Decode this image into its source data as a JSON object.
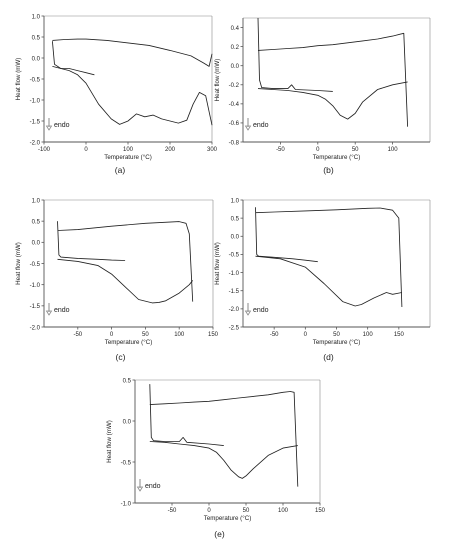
{
  "figure": {
    "colors": {
      "line": "#222222",
      "axis": "#555555",
      "frame": "#888888",
      "tick_label": "#222222"
    },
    "endo_label": "endo",
    "endo_icon": "down-arrow-icon"
  },
  "chart_data": [
    {
      "type": "line",
      "panel_label": "(a)",
      "xlabel": "Temperature (°C)",
      "ylabel": "Heat flow (mW)",
      "xlim": [
        -100,
        300
      ],
      "ylim": [
        -2.0,
        1.0
      ],
      "xticks": [
        -100,
        0,
        100,
        200,
        300
      ],
      "yticks": [
        -2.0,
        -1.5,
        -1.0,
        -0.5,
        0.0,
        0.5,
        1.0
      ],
      "ytick_labels": [
        "-2.0",
        "-1.5",
        "-1.0",
        "-0.5",
        "0.0",
        "0.5",
        "1.0"
      ],
      "grid": false,
      "series": [
        {
          "x": [
            -80,
            -75,
            -60,
            -40,
            -20,
            0,
            20
          ],
          "y": [
            0.4,
            -0.15,
            -0.25,
            -0.25,
            -0.3,
            -0.35,
            -0.4
          ]
        },
        {
          "x": [
            -80,
            -50,
            -20,
            0,
            50,
            100,
            150,
            200,
            250,
            280,
            293,
            300
          ],
          "y": [
            0.42,
            0.44,
            0.45,
            0.45,
            0.42,
            0.36,
            0.3,
            0.18,
            0.05,
            -0.12,
            -0.2,
            0.1
          ]
        },
        {
          "x": [
            -80,
            -60,
            -40,
            -20,
            0,
            30,
            60,
            80,
            100,
            120,
            140,
            160,
            180,
            200,
            220,
            240,
            255,
            270,
            285,
            300
          ],
          "y": [
            -0.2,
            -0.25,
            -0.3,
            -0.4,
            -0.6,
            -1.1,
            -1.45,
            -1.58,
            -1.5,
            -1.33,
            -1.4,
            -1.36,
            -1.45,
            -1.5,
            -1.55,
            -1.48,
            -1.1,
            -0.82,
            -0.9,
            -1.6
          ]
        }
      ]
    },
    {
      "type": "line",
      "panel_label": "(b)",
      "xlabel": "Temperature (°C)",
      "ylabel": "Heat flow (mW)",
      "xlim": [
        -100,
        150
      ],
      "ylim": [
        -0.8,
        0.5
      ],
      "xticks": [
        -50,
        0,
        50,
        100
      ],
      "yticks": [
        -0.8,
        -0.6,
        -0.4,
        -0.2,
        0.0,
        0.2,
        0.4
      ],
      "ytick_labels": [
        "-0.8",
        "-0.6",
        "-0.4",
        "-0.2",
        "0.0",
        "0.2",
        "0.4"
      ],
      "grid": false,
      "series": [
        {
          "x": [
            -80,
            -78,
            -75,
            -60,
            -40,
            -35,
            -30,
            0,
            20
          ],
          "y": [
            0.5,
            -0.15,
            -0.23,
            -0.24,
            -0.24,
            -0.2,
            -0.25,
            -0.26,
            -0.27
          ]
        },
        {
          "x": [
            -80,
            -60,
            -40,
            -20,
            0,
            20,
            40,
            60,
            80,
            100,
            110,
            115,
            120
          ],
          "y": [
            0.16,
            0.17,
            0.18,
            0.19,
            0.21,
            0.22,
            0.24,
            0.26,
            0.28,
            0.31,
            0.33,
            0.34,
            -0.64
          ]
        },
        {
          "x": [
            -80,
            -60,
            -40,
            -20,
            0,
            10,
            20,
            30,
            40,
            50,
            60,
            80,
            100,
            120
          ],
          "y": [
            -0.24,
            -0.25,
            -0.26,
            -0.28,
            -0.31,
            -0.35,
            -0.42,
            -0.52,
            -0.56,
            -0.5,
            -0.38,
            -0.25,
            -0.2,
            -0.17
          ]
        }
      ]
    },
    {
      "type": "line",
      "panel_label": "(c)",
      "xlabel": "Temperature (°C)",
      "ylabel": "Heat flow (mW)",
      "xlim": [
        -100,
        150
      ],
      "ylim": [
        -2.0,
        1.0
      ],
      "xticks": [
        -50,
        0,
        50,
        100,
        150
      ],
      "yticks": [
        -2.0,
        -1.5,
        -1.0,
        -0.5,
        0.0,
        0.5,
        1.0
      ],
      "ytick_labels": [
        "-2.0",
        "-1.5",
        "-1.0",
        "-0.5",
        "0.0",
        "0.5",
        "1.0"
      ],
      "grid": false,
      "series": [
        {
          "x": [
            -80,
            -78,
            -75,
            -50,
            -20,
            0,
            20
          ],
          "y": [
            0.5,
            -0.3,
            -0.35,
            -0.38,
            -0.4,
            -0.42,
            -0.43
          ]
        },
        {
          "x": [
            -80,
            -50,
            0,
            50,
            100,
            110,
            115,
            120
          ],
          "y": [
            0.28,
            0.3,
            0.38,
            0.45,
            0.49,
            0.45,
            0.2,
            -1.4
          ]
        },
        {
          "x": [
            -80,
            -50,
            -20,
            0,
            20,
            40,
            60,
            70,
            80,
            100,
            115,
            120
          ],
          "y": [
            -0.4,
            -0.45,
            -0.55,
            -0.75,
            -1.05,
            -1.35,
            -1.43,
            -1.42,
            -1.38,
            -1.2,
            -1.0,
            -0.9
          ]
        }
      ]
    },
    {
      "type": "line",
      "panel_label": "(d)",
      "xlabel": "Temperature (°C)",
      "ylabel": "Heat flow (mW)",
      "xlim": [
        -100,
        200
      ],
      "ylim": [
        -2.5,
        1.0
      ],
      "xticks": [
        -50,
        0,
        50,
        100,
        150
      ],
      "yticks": [
        -2.5,
        -2.0,
        -1.5,
        -1.0,
        -0.5,
        0.0,
        0.5,
        1.0
      ],
      "ytick_labels": [
        "-2.5",
        "-2.0",
        "-1.5",
        "-1.0",
        "-0.5",
        "0.0",
        "0.5",
        "1.0"
      ],
      "grid": false,
      "series": [
        {
          "x": [
            -80,
            -78,
            -75,
            -50,
            -20,
            0,
            20
          ],
          "y": [
            0.8,
            -0.5,
            -0.55,
            -0.58,
            -0.62,
            -0.66,
            -0.7
          ]
        },
        {
          "x": [
            -80,
            -50,
            0,
            50,
            100,
            120,
            140,
            150,
            155
          ],
          "y": [
            0.65,
            0.67,
            0.7,
            0.73,
            0.77,
            0.78,
            0.72,
            0.5,
            -1.95
          ]
        },
        {
          "x": [
            -80,
            -40,
            0,
            30,
            60,
            80,
            90,
            110,
            130,
            140,
            155
          ],
          "y": [
            -0.55,
            -0.62,
            -0.85,
            -1.3,
            -1.8,
            -1.92,
            -1.88,
            -1.7,
            -1.55,
            -1.6,
            -1.55
          ]
        }
      ]
    },
    {
      "type": "line",
      "panel_label": "(e)",
      "xlabel": "Temperature (°C)",
      "ylabel": "Heat flow (mW)",
      "xlim": [
        -100,
        150
      ],
      "ylim": [
        -1.0,
        0.5
      ],
      "xticks": [
        -50,
        0,
        50,
        100,
        150
      ],
      "yticks": [
        -1.0,
        -0.5,
        0.0,
        0.5
      ],
      "ytick_labels": [
        "-1.0",
        "-0.5",
        "0.0",
        "0.5"
      ],
      "grid": false,
      "series": [
        {
          "x": [
            -80,
            -78,
            -75,
            -60,
            -40,
            -35,
            -30,
            0,
            20
          ],
          "y": [
            0.45,
            -0.2,
            -0.24,
            -0.25,
            -0.25,
            -0.2,
            -0.26,
            -0.28,
            -0.3
          ]
        },
        {
          "x": [
            -80,
            -60,
            -40,
            -20,
            0,
            20,
            40,
            60,
            80,
            100,
            110,
            115,
            120
          ],
          "y": [
            0.2,
            0.21,
            0.22,
            0.23,
            0.24,
            0.26,
            0.28,
            0.3,
            0.32,
            0.35,
            0.36,
            0.35,
            -0.8
          ]
        },
        {
          "x": [
            -80,
            -60,
            -40,
            -20,
            0,
            10,
            20,
            30,
            40,
            45,
            50,
            60,
            80,
            100,
            120
          ],
          "y": [
            -0.25,
            -0.26,
            -0.28,
            -0.3,
            -0.33,
            -0.38,
            -0.48,
            -0.6,
            -0.68,
            -0.7,
            -0.67,
            -0.58,
            -0.42,
            -0.33,
            -0.3
          ]
        }
      ]
    }
  ]
}
